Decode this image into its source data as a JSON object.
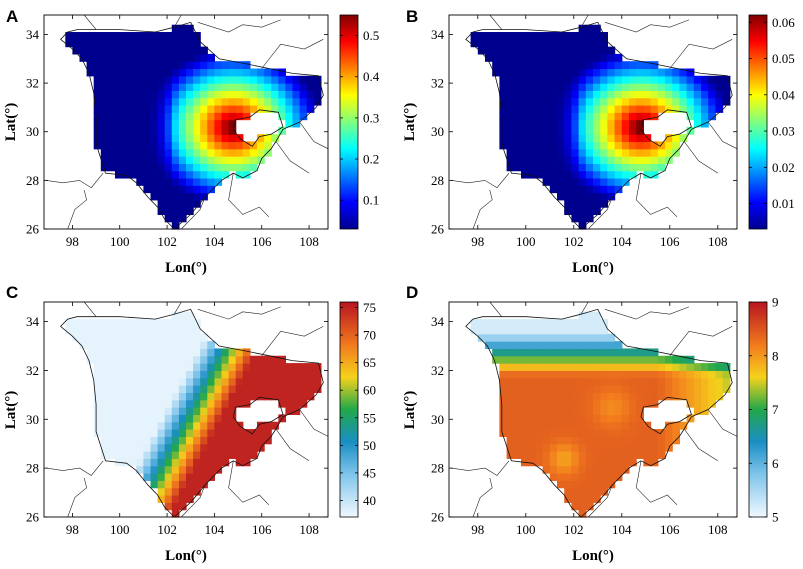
{
  "panels": [
    {
      "letter": "A",
      "xlabel": "Lon(°)",
      "ylabel": "Lat(°)",
      "x_ticks": [
        "98",
        "100",
        "102",
        "104",
        "106",
        "108"
      ],
      "y_ticks": [
        "26",
        "28",
        "30",
        "32",
        "34"
      ],
      "colorbar_ticks": [
        "0.5",
        "0.4",
        "0.3",
        "0.2",
        "0.1"
      ],
      "colorbar_range": [
        0.03,
        0.55
      ],
      "colormap": "jet",
      "pattern": "east-hotspot"
    },
    {
      "letter": "B",
      "xlabel": "Lon(°)",
      "ylabel": "Lat(°)",
      "x_ticks": [
        "98",
        "100",
        "102",
        "104",
        "106",
        "108"
      ],
      "y_ticks": [
        "26",
        "28",
        "30",
        "32",
        "34"
      ],
      "colorbar_ticks": [
        "0.06",
        "0.05",
        "0.04",
        "0.03",
        "0.02",
        "0.01"
      ],
      "colorbar_range": [
        0.003,
        0.062
      ],
      "colormap": "jet",
      "pattern": "east-hotspot"
    },
    {
      "letter": "C",
      "xlabel": "Lon(°)",
      "ylabel": "Lat(°)",
      "x_ticks": [
        "98",
        "100",
        "102",
        "104",
        "106",
        "108"
      ],
      "y_ticks": [
        "26",
        "28",
        "30",
        "32",
        "34"
      ],
      "colorbar_ticks": [
        "75",
        "70",
        "65",
        "60",
        "55",
        "50",
        "45",
        "40"
      ],
      "colorbar_range": [
        37,
        76
      ],
      "colormap": "parula-like",
      "pattern": "east-high"
    },
    {
      "letter": "D",
      "xlabel": "Lon(°)",
      "ylabel": "Lat(°)",
      "x_ticks": [
        "98",
        "100",
        "102",
        "104",
        "106",
        "108"
      ],
      "y_ticks": [
        "26",
        "28",
        "30",
        "32",
        "34"
      ],
      "colorbar_ticks": [
        "9",
        "8",
        "7",
        "6",
        "5"
      ],
      "colorbar_range": [
        5,
        9
      ],
      "colormap": "parula-like",
      "pattern": "southwest-high"
    }
  ],
  "map_extent": {
    "lon": [
      96.8,
      108.8
    ],
    "lat": [
      26,
      34.8
    ]
  }
}
